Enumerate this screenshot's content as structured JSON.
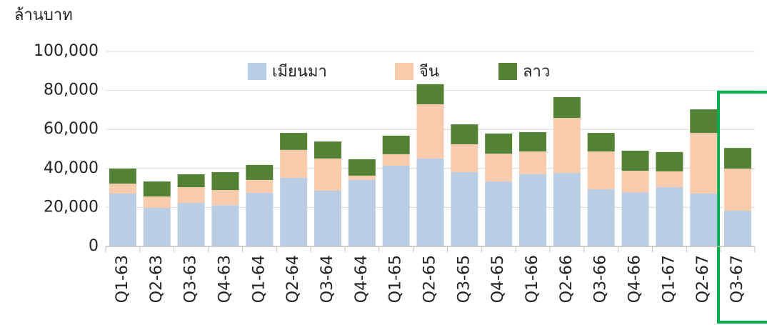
{
  "chart_data": {
    "type": "stacked_bar",
    "y_label": "ล้านบาท",
    "categories": [
      "Q1-63",
      "Q2-63",
      "Q3-63",
      "Q4-63",
      "Q1-64",
      "Q2-64",
      "Q3-64",
      "Q4-64",
      "Q1-65",
      "Q2-65",
      "Q3-65",
      "Q4-65",
      "Q1-66",
      "Q2-66",
      "Q3-66",
      "Q4-66",
      "Q1-67",
      "Q2-67",
      "Q3-67"
    ],
    "series": [
      {
        "name": "เมียนมา",
        "color": "#b9cde5",
        "values": [
          27100,
          19800,
          22300,
          21200,
          27500,
          35200,
          28600,
          34100,
          41400,
          45100,
          38100,
          33300,
          37000,
          37700,
          29300,
          27800,
          30400,
          27100,
          18300
        ]
      },
      {
        "name": "จีน",
        "color": "#f8cbad",
        "values": [
          5100,
          5800,
          8100,
          7700,
          6600,
          14300,
          16500,
          2200,
          5900,
          27800,
          14300,
          14300,
          11700,
          28200,
          19400,
          11000,
          8100,
          31100,
          21600
        ]
      },
      {
        "name": "ลาว",
        "color": "#548235",
        "values": [
          7700,
          7700,
          6600,
          9200,
          7700,
          8700,
          8700,
          8400,
          9500,
          10300,
          10200,
          10300,
          9900,
          10700,
          9500,
          10300,
          9900,
          12100,
          10600
        ]
      }
    ],
    "ylim": [
      0,
      100000
    ],
    "yticks": [
      0,
      {
        "value": 20000,
        "label": "20,000"
      },
      {
        "value": 40000,
        "label": "40,000"
      },
      {
        "value": 60000,
        "label": "60,000"
      },
      {
        "value": 80000,
        "label": "80,000"
      },
      {
        "value": 100000,
        "label": "100,000"
      }
    ],
    "grid": true
  }
}
